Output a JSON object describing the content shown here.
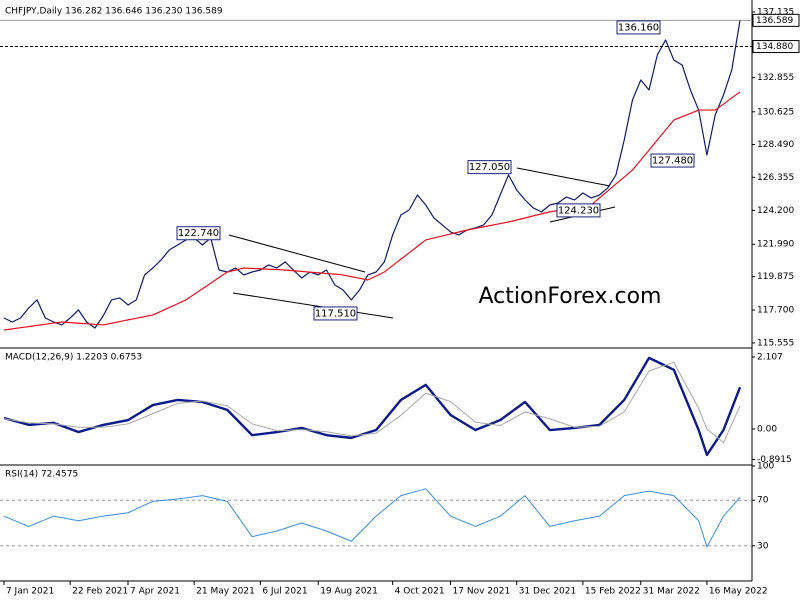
{
  "chart_data": [
    {
      "type": "line",
      "title": "CHFJPY,Daily 136.282 136.646 136.230 136.589",
      "watermark": "ActionForex.com",
      "xlim": [
        -0.48,
        90.45
      ],
      "xticks": [
        {
          "value": 0,
          "label": "7 Jan 2021"
        },
        {
          "value": 8,
          "label": "22 Feb 2021"
        },
        {
          "value": 15,
          "label": "7 Apr 2021"
        },
        {
          "value": 23,
          "label": "21 May 2021"
        },
        {
          "value": 31,
          "label": "6 Jul 2021"
        },
        {
          "value": 38,
          "label": "19 Aug 2021"
        },
        {
          "value": 47,
          "label": "4 Oct 2021"
        },
        {
          "value": 54,
          "label": "17 Nov 2021"
        },
        {
          "value": 62,
          "label": "31 Dec 2021"
        },
        {
          "value": 70,
          "label": "15 Feb 2022"
        },
        {
          "value": 77,
          "label": "31 Mar 2022"
        },
        {
          "value": 85,
          "label": "16 May 2022"
        }
      ],
      "ylim": [
        115.29,
        137.72
      ],
      "yticks": [
        137.135,
        132.855,
        130.625,
        {
          "value": 128.49,
          "label": "128.490"
        },
        126.355,
        {
          "value": 124.2,
          "label": "124.200"
        },
        {
          "value": 121.99,
          "label": "121.990"
        },
        119.875,
        {
          "value": 117.7,
          "label": "117.700"
        },
        115.555
      ],
      "grid": false,
      "series": [
        {
          "color": "#0d1b6b",
          "width": 1.2,
          "values": [
            117.18,
            116.92,
            117.18,
            117.84,
            118.36,
            117.18,
            116.92,
            116.73,
            117.18,
            117.71,
            116.92,
            116.53,
            117.32,
            118.36,
            118.49,
            118.03,
            118.36,
            119.99,
            120.44,
            120.97,
            121.62,
            121.94,
            122.27,
            122.4,
            121.94,
            122.4,
            120.31,
            120.18,
            120.44,
            119.99,
            120.18,
            120.31,
            120.64,
            120.44,
            120.84,
            120.31,
            119.79,
            120.18,
            119.99,
            120.31,
            119.34,
            119.01,
            118.36,
            119.01,
            119.99,
            120.18,
            120.84,
            122.6,
            123.9,
            124.23,
            125.2,
            124.55,
            123.7,
            123.25,
            122.79,
            122.6,
            122.92,
            123.05,
            123.25,
            123.9,
            125.2,
            126.51,
            125.53,
            124.88,
            124.36,
            124.1,
            124.55,
            124.68,
            125.07,
            124.88,
            125.33,
            125.01,
            125.2,
            125.66,
            126.51,
            128.79,
            131.4,
            132.7,
            132.05,
            134.33,
            135.31,
            134.0,
            133.68,
            132.05,
            130.74,
            127.81,
            130.42,
            131.72,
            133.35,
            136.589
          ]
        },
        {
          "color": "#e8101c",
          "width": 1.2,
          "values": [
            116.4,
            116.47,
            116.55,
            116.62,
            116.7,
            116.77,
            116.85,
            116.92,
            116.88,
            116.84,
            116.81,
            116.77,
            116.73,
            116.84,
            116.95,
            117.06,
            117.16,
            117.27,
            117.38,
            117.62,
            117.87,
            118.11,
            118.36,
            118.72,
            119.09,
            119.45,
            119.82,
            120.18,
            120.31,
            120.44,
            120.41,
            120.39,
            120.36,
            120.34,
            120.31,
            120.26,
            120.22,
            120.17,
            120.13,
            120.08,
            120.04,
            119.99,
            119.88,
            119.77,
            119.66,
            119.92,
            120.18,
            120.6,
            121.02,
            121.43,
            121.85,
            122.27,
            122.4,
            122.53,
            122.66,
            122.79,
            122.92,
            123.02,
            123.13,
            123.23,
            123.34,
            123.44,
            123.57,
            123.7,
            123.84,
            123.97,
            124.1,
            124.19,
            124.28,
            124.37,
            124.46,
            124.55,
            125.01,
            125.46,
            125.92,
            126.37,
            126.83,
            127.48,
            128.13,
            128.79,
            129.44,
            130.09,
            130.31,
            130.52,
            130.74,
            130.74,
            130.74,
            131.13,
            131.53,
            131.92
          ]
        }
      ],
      "levels": [
        {
          "value": 136.589,
          "label": "136.589",
          "style": "solid"
        },
        {
          "value": 134.88,
          "label": "134.880",
          "style": "dashed"
        }
      ],
      "annotations": [
        {
          "value": 122.74,
          "label": "122.740"
        },
        {
          "value": 117.51,
          "label": "117.510"
        },
        {
          "value": 127.05,
          "label": "127.050"
        },
        {
          "value": 124.23,
          "label": "124.230"
        },
        {
          "value": 136.16,
          "label": "136.160"
        },
        {
          "value": 127.48,
          "label": "127.480"
        }
      ]
    },
    {
      "type": "line",
      "title": "MACD(12,26,9) 1.2203 0.6753",
      "x": [
        0,
        3,
        6,
        9,
        12,
        15,
        18,
        21,
        24,
        27,
        30,
        33,
        36,
        39,
        42,
        45,
        48,
        51,
        54,
        57,
        60,
        63,
        66,
        69,
        72,
        75,
        78,
        81,
        84,
        85,
        87,
        89
      ],
      "ylim": [
        -0.995,
        2.34
      ],
      "yticks": [
        2.107,
        {
          "value": 0,
          "label": "0.00"
        },
        -0.8915
      ],
      "grid": false,
      "series": [
        {
          "color": "#0d1b8a",
          "width": 2.4,
          "values": [
            0.32,
            0.12,
            0.18,
            -0.09,
            0.12,
            0.26,
            0.7,
            0.85,
            0.79,
            0.56,
            -0.18,
            -0.09,
            0.03,
            -0.18,
            -0.26,
            -0.03,
            0.85,
            1.29,
            0.41,
            -0.03,
            0.26,
            0.79,
            -0.03,
            0.03,
            0.12,
            0.85,
            2.08,
            1.73,
            -0.03,
            -0.76,
            -0.03,
            1.2203
          ]
        },
        {
          "color": "#a8a8a8",
          "width": 1,
          "values": [
            0.3,
            0.18,
            0.15,
            0.05,
            0.05,
            0.15,
            0.45,
            0.75,
            0.82,
            0.68,
            0.15,
            -0.05,
            -0.02,
            -0.08,
            -0.2,
            -0.12,
            0.4,
            1.05,
            0.8,
            0.2,
            0.1,
            0.5,
            0.3,
            0.05,
            0.08,
            0.5,
            1.7,
            1.95,
            0.6,
            0.0,
            -0.4,
            0.6753
          ]
        }
      ]
    },
    {
      "type": "line",
      "title": "RSI(14) 72.4575",
      "x": [
        0,
        3,
        6,
        9,
        12,
        15,
        18,
        21,
        24,
        27,
        30,
        33,
        36,
        39,
        42,
        45,
        48,
        51,
        54,
        57,
        60,
        63,
        66,
        69,
        72,
        75,
        78,
        81,
        84,
        85,
        87,
        89
      ],
      "ylim": [
        0,
        100
      ],
      "yticks": [
        100,
        70,
        30
      ],
      "grid": true,
      "series": [
        {
          "color": "#3a8ee6",
          "width": 1,
          "values": [
            56,
            47,
            56,
            52,
            56,
            59,
            69,
            71,
            74,
            69,
            38,
            43,
            50,
            43,
            34,
            56,
            74,
            80,
            56,
            47,
            56,
            74,
            47,
            52,
            56,
            74,
            78,
            74,
            52,
            29,
            56,
            72.4575
          ]
        }
      ]
    }
  ]
}
